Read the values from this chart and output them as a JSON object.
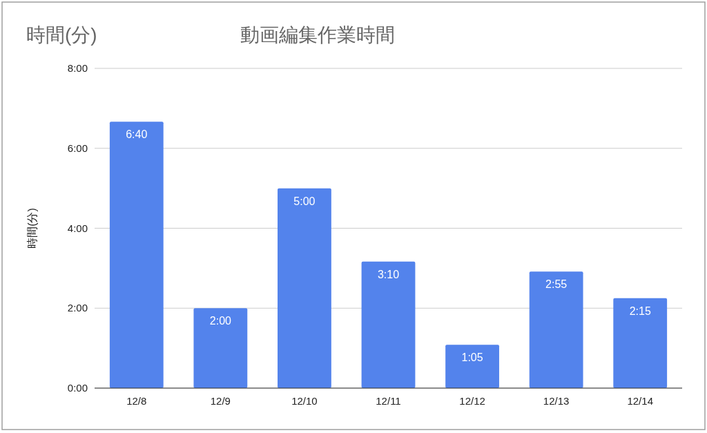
{
  "chart_data": {
    "type": "bar",
    "title": "動画編集作業時間",
    "ylabel": "時間(分)",
    "annotations": [
      "時間(分)"
    ],
    "categories": [
      "12/8",
      "12/9",
      "12/10",
      "12/11",
      "12/12",
      "12/13",
      "12/14"
    ],
    "values": [
      6.667,
      2,
      5,
      3.167,
      1.083,
      2.917,
      2.25
    ],
    "value_labels": [
      "6:40",
      "2:00",
      "5:00",
      "3:10",
      "1:05",
      "2:55",
      "2:15"
    ],
    "color": "#5383ec",
    "ylim": [
      0,
      8
    ],
    "yticks": [
      {
        "value": 0,
        "label": "0:00"
      },
      {
        "value": 2,
        "label": "2:00"
      },
      {
        "value": 4,
        "label": "4:00"
      },
      {
        "value": 6,
        "label": "6:00"
      },
      {
        "value": 8,
        "label": "8:00"
      }
    ],
    "grid": "y"
  }
}
